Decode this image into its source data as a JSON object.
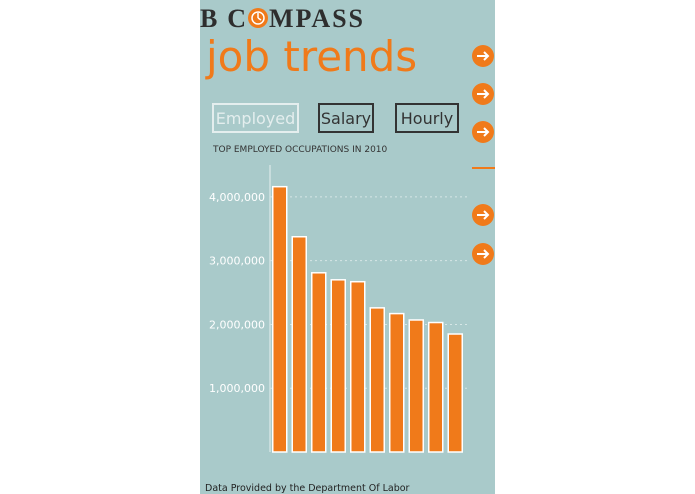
{
  "header": {
    "logo_left": "B C",
    "logo_right": "MPASS",
    "title": "job trends"
  },
  "buttons": [
    "Employed",
    "Salary",
    "Hourly"
  ],
  "chart_data": {
    "type": "bar",
    "title": "TOP EMPLOYED OCCUPATIONS IN 2010",
    "categories": [
      null,
      null,
      null,
      null,
      null,
      null,
      null,
      null,
      null,
      null
    ],
    "values": [
      4160000,
      3375000,
      2810000,
      2700000,
      2670000,
      2260000,
      2170000,
      2070000,
      2030000,
      1850000
    ],
    "color": "#f07a1a",
    "ylim": [
      0,
      4500000
    ],
    "yticks": [
      {
        "value": 1000000,
        "label": "1,000,000"
      },
      {
        "value": 2000000,
        "label": "2,000,000"
      },
      {
        "value": 3000000,
        "label": "3,000,000"
      },
      {
        "value": 4000000,
        "label": "4,000,000"
      }
    ],
    "grid": true
  },
  "footer": "Data Provided by the Department Of Labor"
}
